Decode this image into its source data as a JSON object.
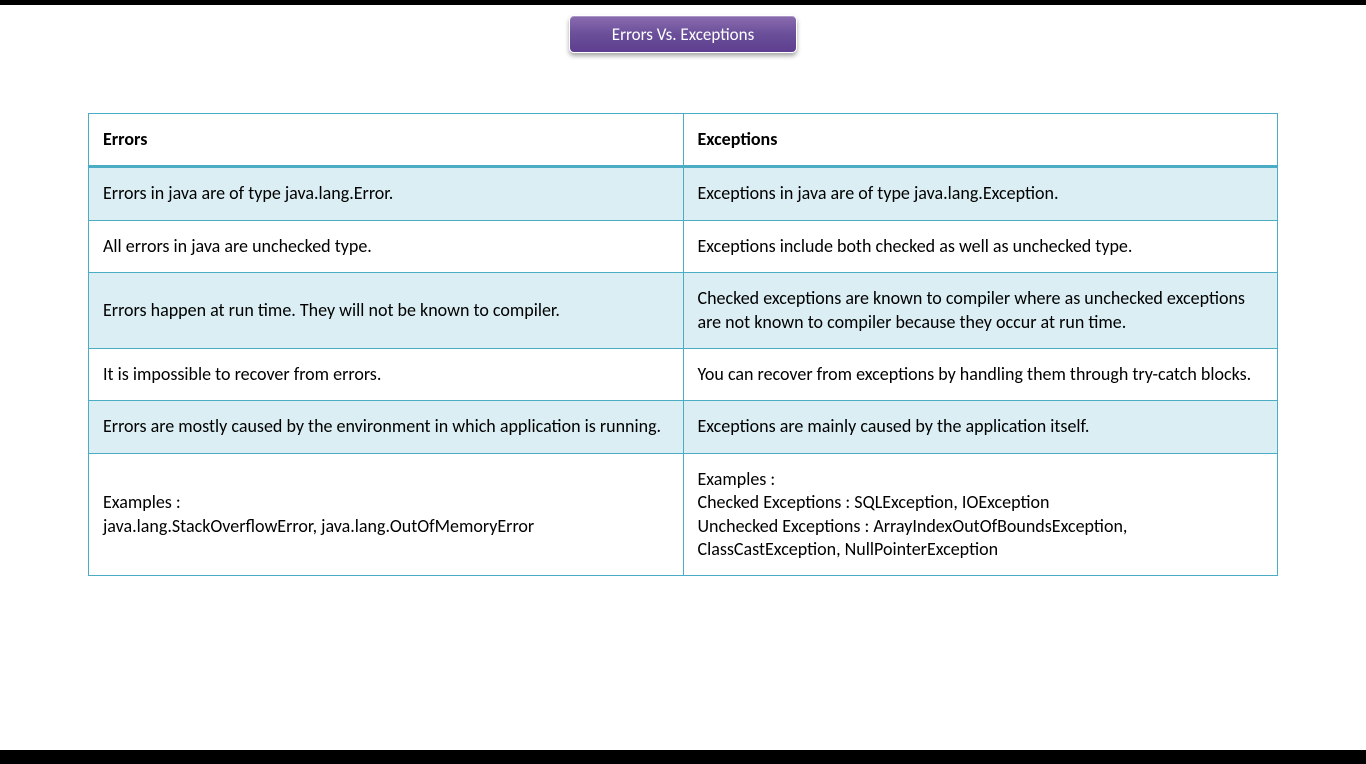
{
  "title": "Errors Vs. Exceptions",
  "colors": {
    "title_bg_top": "#8b6cb0",
    "title_bg_bottom": "#5e3e90",
    "title_text": "#ffffff",
    "table_border": "#4bacc6",
    "band_bg": "#daeef3",
    "plain_bg": "#ffffff",
    "page_bg": "#ffffff",
    "frame_bar": "#000000"
  },
  "typography": {
    "title_fontsize_pt": 13,
    "cell_fontsize_pt": 14,
    "header_weight": "bold",
    "font_family": "Segoe UI / Calibri"
  },
  "table": {
    "type": "table",
    "columns": [
      "Errors",
      "Exceptions"
    ],
    "column_widths_pct": [
      50,
      50
    ],
    "header_underline_color": "#4bacc6",
    "row_band_colors": [
      "#daeef3",
      "#ffffff"
    ],
    "rows": [
      {
        "errors": "Errors in java are of type java.lang.Error.",
        "exceptions": "Exceptions in java are of type java.lang.Exception."
      },
      {
        "errors": "All errors in java are unchecked type.",
        "exceptions": "Exceptions include both checked as well as unchecked type."
      },
      {
        "errors": "Errors happen at run time. They will not be known to compiler.",
        "exceptions": "Checked exceptions are known to compiler where as unchecked exceptions are not known to compiler because they occur at run time."
      },
      {
        "errors": "It is impossible to recover from errors.",
        "exceptions": "You can recover from exceptions by handling them through try-catch blocks."
      },
      {
        "errors": "Errors are mostly caused by the environment in which application is running.",
        "exceptions": "Exceptions are mainly caused by the application itself."
      },
      {
        "errors": "Examples :\njava.lang.StackOverflowError, java.lang.OutOfMemoryError",
        "exceptions": "Examples :\nChecked Exceptions : SQLException, IOException\nUnchecked Exceptions : ArrayIndexOutOfBoundsException, ClassCastException, NullPointerException"
      }
    ]
  }
}
